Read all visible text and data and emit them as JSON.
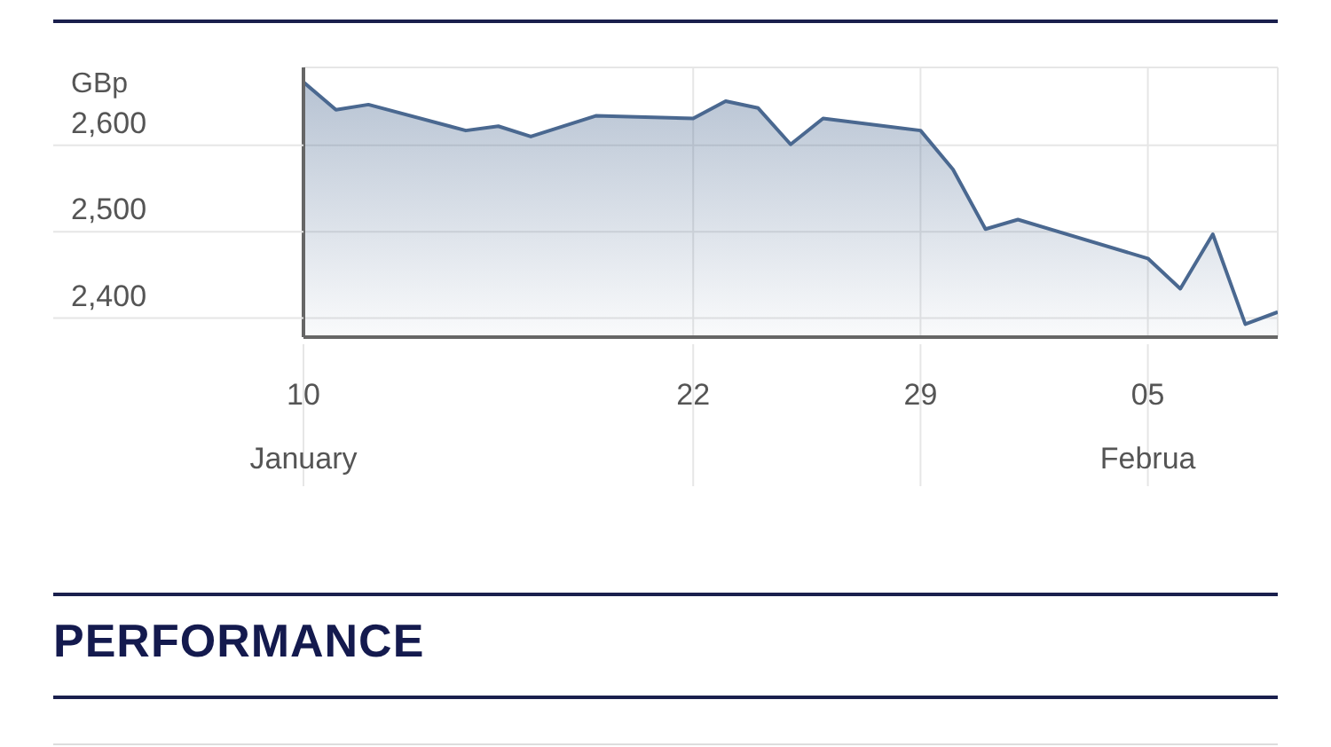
{
  "chart_data": {
    "type": "area",
    "ylabel": "GBp",
    "x": [
      "--01-10",
      "--01-11",
      "--01-12",
      "--01-15",
      "--01-16",
      "--01-17",
      "--01-19",
      "--01-22",
      "--01-23",
      "--01-24",
      "--01-25",
      "--01-26",
      "--01-29",
      "--01-30",
      "--01-31",
      "--02-01",
      "--02-05",
      "--02-06",
      "--02-07",
      "--02-08",
      "--02-09"
    ],
    "series": [
      {
        "color": "#4a6890",
        "values": [
          2673,
          2641,
          2647,
          2617,
          2622,
          2610,
          2634,
          2631,
          2651,
          2643,
          2601,
          2631,
          2617,
          2572,
          2503,
          2514,
          2469,
          2434,
          2497,
          2393,
          2407
        ]
      }
    ],
    "xlim": [
      "--01-10",
      "--02-09"
    ],
    "xticks": [
      {
        "value": "--01-10",
        "label": "10\nJanuary"
      },
      {
        "value": "--01-22",
        "label": "22"
      },
      {
        "value": "--01-29",
        "label": "29"
      },
      {
        "value": "--02-05",
        "label": "05\nFebrua"
      }
    ],
    "ylim": [
      2378,
      2690
    ],
    "yticks": [
      {
        "value": 2400,
        "label": "2,400"
      },
      {
        "value": 2500,
        "label": "2,500"
      },
      {
        "value": 2600,
        "label": "2,600"
      }
    ],
    "grid": true,
    "legend": false,
    "marker": "none",
    "line_style": "solid",
    "annotations": [
      "PERFORMANCE"
    ]
  }
}
